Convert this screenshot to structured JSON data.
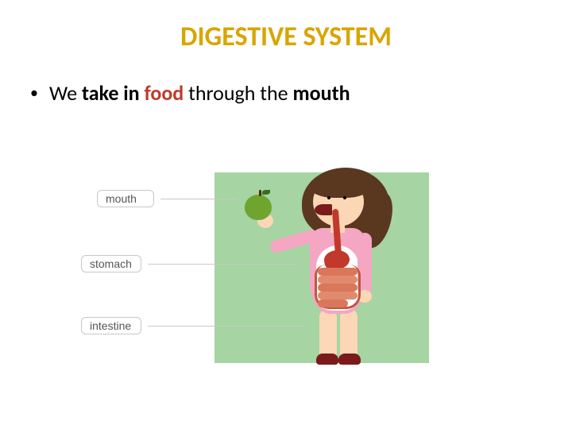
{
  "title": {
    "text": "DIGESTIVE SYSTEM",
    "color": "#d9a500",
    "fontsize": 34
  },
  "bullet": {
    "segments": [
      {
        "text": "We ",
        "bold": false
      },
      {
        "text": "take in ",
        "bold": true,
        "color": "#000000"
      },
      {
        "text": "food",
        "bold": true,
        "color": "#c0392b"
      },
      {
        "text": " through the ",
        "bold": false
      },
      {
        "text": "mouth",
        "bold": true,
        "color": "#000000"
      }
    ]
  },
  "diagram": {
    "labels": {
      "mouth": "mouth",
      "stomach": "stomach",
      "intestine": "intestine"
    },
    "colors": {
      "background_panel": "#a6d4a2",
      "label_border": "#c8c8c8",
      "label_text": "#555555",
      "hair": "#5a3820",
      "skin": "#fbd7b6",
      "shirt": "#f4a6c3",
      "apple": "#6fa52f",
      "organ_red": "#c0392b",
      "intestine_fill": "#d9775a",
      "shoe": "#7a1a1a"
    }
  }
}
